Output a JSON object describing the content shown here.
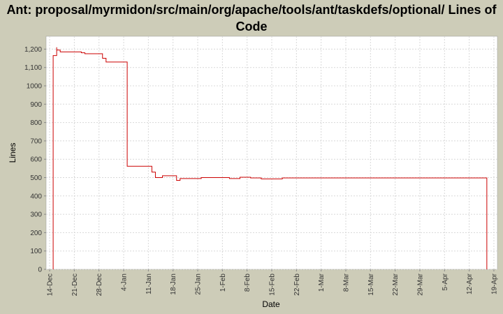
{
  "chart_data": {
    "type": "line",
    "step": true,
    "title": "Ant: proposal/myrmidon/src/main/org/apache/tools/ant/taskdefs/optional/ Lines of Code",
    "x_label": "Date",
    "y_label": "Lines",
    "x": [
      "15-Dec",
      "15-Dec",
      "16-Dec",
      "16-Dec",
      "17-Dec",
      "23-Dec",
      "24-Dec",
      "29-Dec",
      "30-Dec",
      "5-Jan",
      "5-Jan",
      "12-Jan",
      "13-Jan",
      "15-Jan",
      "19-Jan",
      "20-Jan",
      "20-Jan",
      "26-Jan",
      "3-Feb",
      "6-Feb",
      "9-Feb",
      "12-Feb",
      "18-Feb",
      "17-Apr"
    ],
    "series": [
      {
        "name": "Lines",
        "color": "#cc0000",
        "values": [
          0,
          1165,
          1210,
          1195,
          1185,
          1180,
          1175,
          1150,
          1130,
          565,
          562,
          530,
          500,
          510,
          485,
          490,
          495,
          500,
          495,
          502,
          498,
          493,
          498,
          0
        ]
      }
    ],
    "xlim": [
      "13-Dec",
      "20-Apr"
    ],
    "xticks": [
      "14-Dec",
      "21-Dec",
      "28-Dec",
      "4-Jan",
      "11-Jan",
      "18-Jan",
      "25-Jan",
      "1-Feb",
      "8-Feb",
      "15-Feb",
      "22-Feb",
      "1-Mar",
      "8-Mar",
      "15-Mar",
      "22-Mar",
      "29-Mar",
      "5-Apr",
      "12-Apr",
      "19-Apr"
    ],
    "ylim": [
      0,
      1270
    ],
    "yticks": [
      0,
      100,
      200,
      300,
      400,
      500,
      600,
      700,
      800,
      900,
      1000,
      {
        "value": 1100,
        "label": "1,100"
      },
      {
        "value": 1200,
        "label": "1,200"
      }
    ],
    "grid": true
  }
}
